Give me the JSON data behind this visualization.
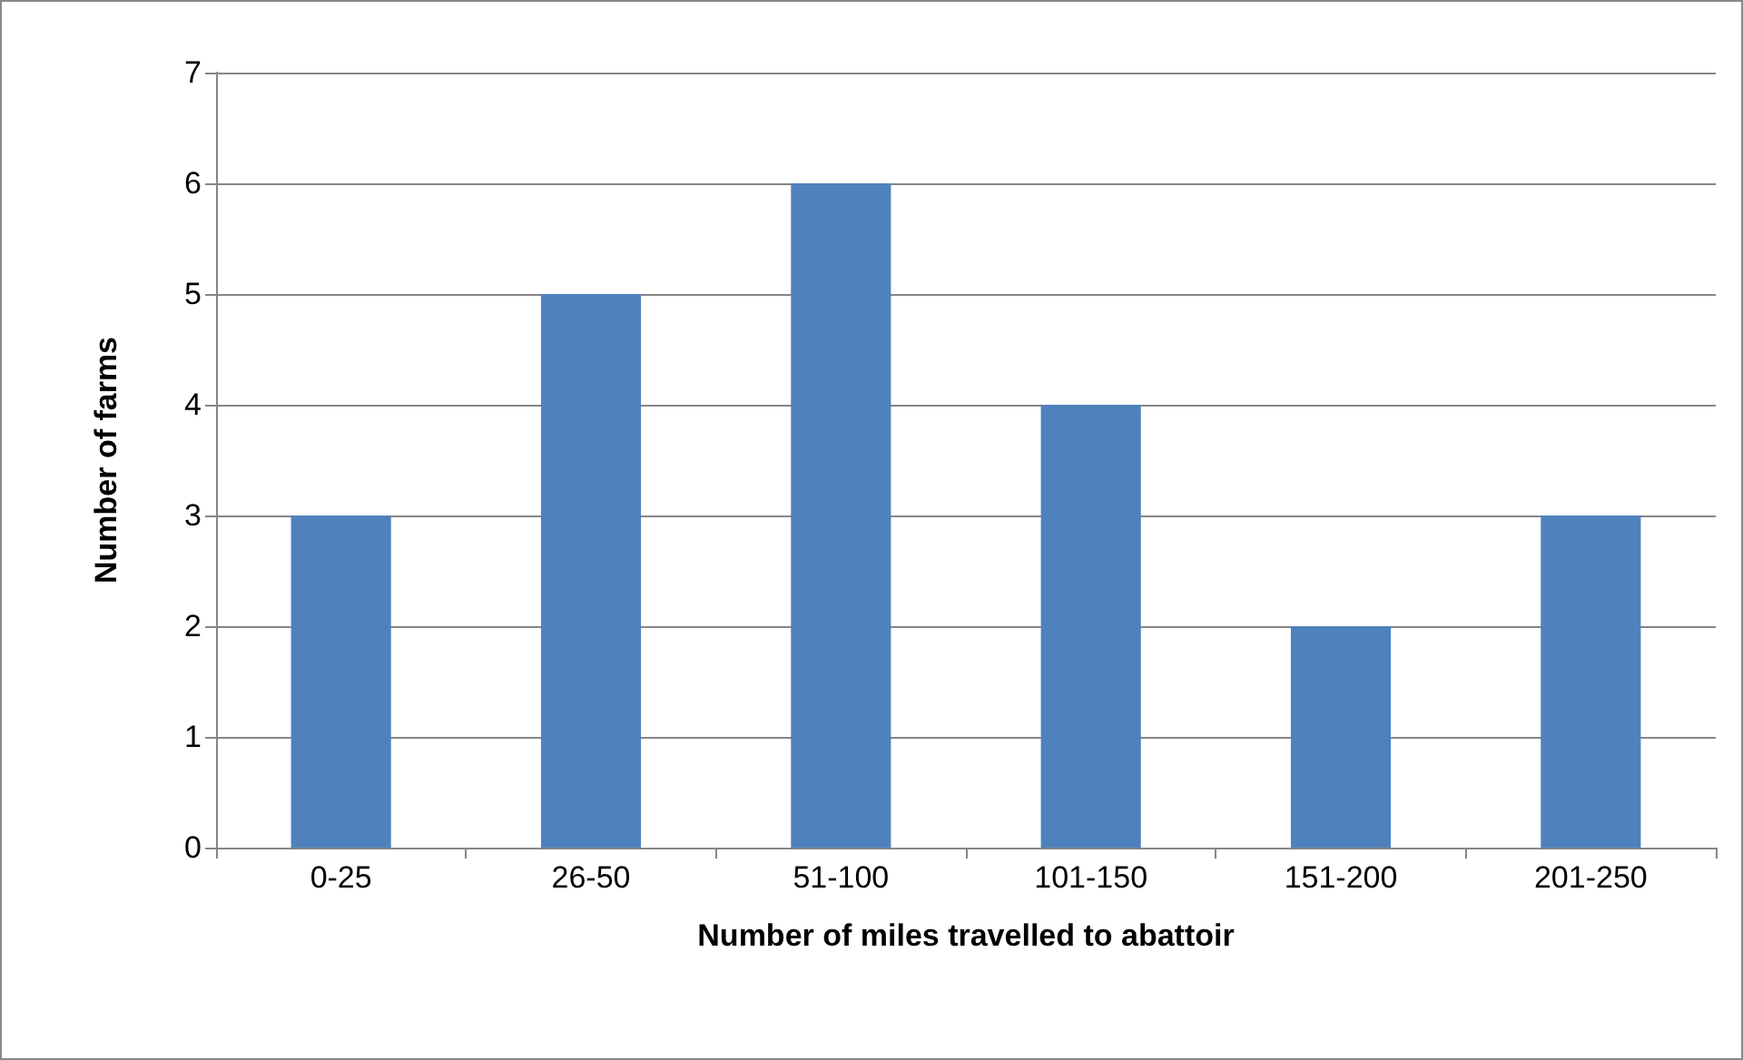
{
  "chart_data": {
    "type": "bar",
    "xlabel": "Number of miles travelled to abattoir",
    "ylabel": "Number of farms",
    "categories": [
      "0-25",
      "26-50",
      "51-100",
      "101-150",
      "151-200",
      "201-250"
    ],
    "values": [
      3,
      5,
      6,
      4,
      2,
      3
    ],
    "color": "#4f81bd",
    "ylim": [
      0,
      7
    ],
    "yticks": [
      0,
      1,
      2,
      3,
      4,
      5,
      6,
      7
    ],
    "grid": "y"
  }
}
